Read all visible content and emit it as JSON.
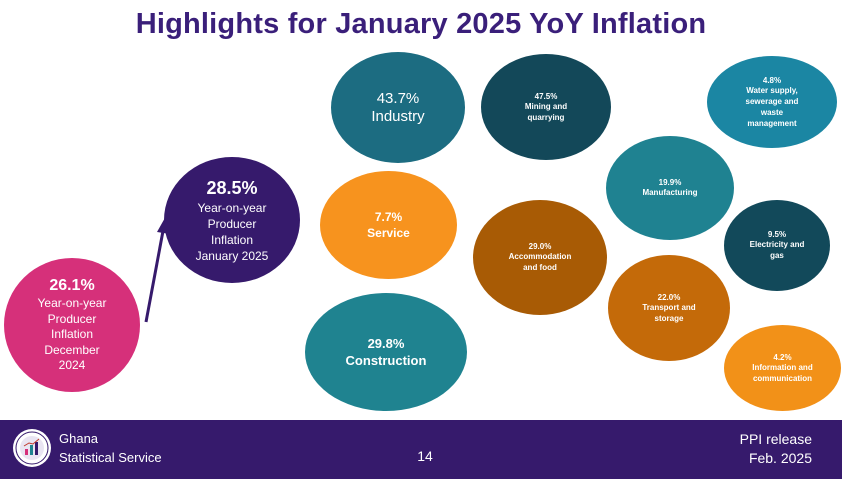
{
  "slide": {
    "title": "Highlights for January 2025 YoY Inflation"
  },
  "comparison": {
    "previous": {
      "value": "26.1%",
      "label_lines": [
        "Year-on-year",
        "Producer",
        "Inflation",
        "December",
        "2024"
      ],
      "color": "#d6307a"
    },
    "current": {
      "value": "28.5%",
      "label_lines": [
        "Year-on-year",
        "Producer",
        "Inflation",
        "January 2025"
      ],
      "color": "#361a6c"
    }
  },
  "sectors": {
    "industry": {
      "value": "43.7%",
      "label": "Industry",
      "color": "#1c6c81"
    },
    "service": {
      "value": "7.7%",
      "label": "Service",
      "color": "#f7931e"
    },
    "construction": {
      "value": "29.8%",
      "label": "Construction",
      "color": "#1f8390"
    },
    "mining": {
      "value": "47.5%",
      "label_lines": [
        "Mining and",
        "quarrying"
      ],
      "color": "#134859"
    },
    "accommodation": {
      "value": "29.0%",
      "label_lines": [
        "Accommodation",
        "and food"
      ],
      "color": "#a85b05"
    },
    "manufacturing": {
      "value": "19.9%",
      "label_lines": [
        "Manufacturing"
      ],
      "color": "#1f8291"
    },
    "water": {
      "value": "4.8%",
      "label_lines": [
        "Water supply,",
        "sewerage and",
        "waste",
        "management"
      ],
      "color": "#1b86a3"
    },
    "electricity": {
      "value": "9.5%",
      "label_lines": [
        "Electricity and",
        "gas"
      ],
      "color": "#12495a"
    },
    "transport": {
      "value": "22.0%",
      "label_lines": [
        "Transport and",
        "storage"
      ],
      "color": "#c46a09"
    },
    "information": {
      "value": "4.2%",
      "label_lines": [
        "Information and",
        "communication"
      ],
      "color": "#f29118"
    }
  },
  "footer": {
    "org_lines": [
      "Ghana",
      "Statistical Service"
    ],
    "page_number": "14",
    "release_lines": [
      "PPI release",
      "Feb. 2025"
    ],
    "background": "#361a6c",
    "logo_icon": "ghana-statistical-service-seal-icon"
  }
}
